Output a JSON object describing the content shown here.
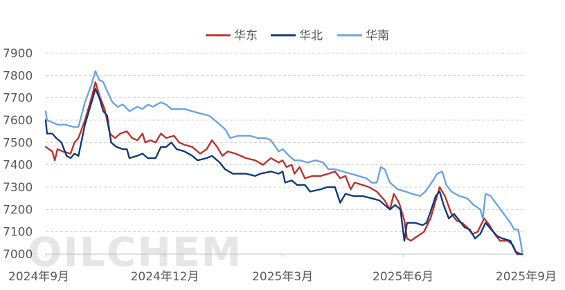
{
  "watermark": "OILCHEM",
  "chart_data": {
    "type": "line",
    "title": "",
    "xlabel": "",
    "ylabel": "",
    "ylim": [
      7000,
      7900
    ],
    "yticks": [
      7000,
      7100,
      7200,
      7300,
      7400,
      7500,
      7600,
      7700,
      7800,
      7900
    ],
    "xlim": [
      "2024-09-01",
      "2025-09-01"
    ],
    "xticks": [
      {
        "date": "2024-09-01",
        "label": "2024年9月"
      },
      {
        "date": "2024-12-01",
        "label": "2024年12月"
      },
      {
        "date": "2025-03-01",
        "label": "2025年3月"
      },
      {
        "date": "2025-06-01",
        "label": "2025年6月"
      },
      {
        "date": "2025-09-01",
        "label": "2025年9月"
      }
    ],
    "grid": true,
    "legend_position": "top-center",
    "series": [
      {
        "name": "华东",
        "color": "#c0302b",
        "points": [
          [
            "2024-09-01",
            7480
          ],
          [
            "2024-09-06",
            7460
          ],
          [
            "2024-09-08",
            7420
          ],
          [
            "2024-09-10",
            7470
          ],
          [
            "2024-09-14",
            7460
          ],
          [
            "2024-09-20",
            7450
          ],
          [
            "2024-09-23",
            7500
          ],
          [
            "2024-09-26",
            7520
          ],
          [
            "2024-10-01",
            7600
          ],
          [
            "2024-10-06",
            7700
          ],
          [
            "2024-10-09",
            7770
          ],
          [
            "2024-10-12",
            7710
          ],
          [
            "2024-10-16",
            7650
          ],
          [
            "2024-10-20",
            7540
          ],
          [
            "2024-10-24",
            7520
          ],
          [
            "2024-10-28",
            7540
          ],
          [
            "2024-11-02",
            7550
          ],
          [
            "2024-11-06",
            7520
          ],
          [
            "2024-11-10",
            7510
          ],
          [
            "2024-11-14",
            7540
          ],
          [
            "2024-11-16",
            7500
          ],
          [
            "2024-11-20",
            7510
          ],
          [
            "2024-11-24",
            7500
          ],
          [
            "2024-11-28",
            7540
          ],
          [
            "2024-12-02",
            7520
          ],
          [
            "2024-12-08",
            7530
          ],
          [
            "2024-12-12",
            7500
          ],
          [
            "2024-12-16",
            7490
          ],
          [
            "2024-12-22",
            7480
          ],
          [
            "2024-12-28",
            7450
          ],
          [
            "2025-01-02",
            7470
          ],
          [
            "2025-01-06",
            7510
          ],
          [
            "2025-01-10",
            7480
          ],
          [
            "2025-01-14",
            7440
          ],
          [
            "2025-01-18",
            7460
          ],
          [
            "2025-01-24",
            7450
          ],
          [
            "2025-02-01",
            7430
          ],
          [
            "2025-02-08",
            7420
          ],
          [
            "2025-02-14",
            7400
          ],
          [
            "2025-02-20",
            7430
          ],
          [
            "2025-02-26",
            7410
          ],
          [
            "2025-03-01",
            7420
          ],
          [
            "2025-03-04",
            7390
          ],
          [
            "2025-03-08",
            7400
          ],
          [
            "2025-03-10",
            7360
          ],
          [
            "2025-03-14",
            7390
          ],
          [
            "2025-03-18",
            7340
          ],
          [
            "2025-03-24",
            7350
          ],
          [
            "2025-03-30",
            7350
          ],
          [
            "2025-04-05",
            7360
          ],
          [
            "2025-04-10",
            7370
          ],
          [
            "2025-04-14",
            7340
          ],
          [
            "2025-04-18",
            7350
          ],
          [
            "2025-04-22",
            7290
          ],
          [
            "2025-04-25",
            7320
          ],
          [
            "2025-05-01",
            7310
          ],
          [
            "2025-05-06",
            7300
          ],
          [
            "2025-05-12",
            7280
          ],
          [
            "2025-05-18",
            7240
          ],
          [
            "2025-05-22",
            7200
          ],
          [
            "2025-05-25",
            7270
          ],
          [
            "2025-05-29",
            7230
          ],
          [
            "2025-06-02",
            7150
          ],
          [
            "2025-06-04",
            7070
          ],
          [
            "2025-06-07",
            7060
          ],
          [
            "2025-06-12",
            7080
          ],
          [
            "2025-06-17",
            7100
          ],
          [
            "2025-06-22",
            7160
          ],
          [
            "2025-06-26",
            7240
          ],
          [
            "2025-06-29",
            7300
          ],
          [
            "2025-07-03",
            7260
          ],
          [
            "2025-07-08",
            7180
          ],
          [
            "2025-07-12",
            7150
          ],
          [
            "2025-07-16",
            7140
          ],
          [
            "2025-07-20",
            7120
          ],
          [
            "2025-07-24",
            7090
          ],
          [
            "2025-07-28",
            7100
          ],
          [
            "2025-08-02",
            7160
          ],
          [
            "2025-08-06",
            7130
          ],
          [
            "2025-08-10",
            7090
          ],
          [
            "2025-08-14",
            7060
          ],
          [
            "2025-08-20",
            7060
          ],
          [
            "2025-08-24",
            7040
          ],
          [
            "2025-08-27",
            7000
          ],
          [
            "2025-08-31",
            7000
          ]
        ]
      },
      {
        "name": "华北",
        "color": "#0f3a7a",
        "points": [
          [
            "2024-09-01",
            7600
          ],
          [
            "2024-09-02",
            7540
          ],
          [
            "2024-09-06",
            7540
          ],
          [
            "2024-09-09",
            7520
          ],
          [
            "2024-09-13",
            7500
          ],
          [
            "2024-09-17",
            7440
          ],
          [
            "2024-09-20",
            7430
          ],
          [
            "2024-09-23",
            7450
          ],
          [
            "2024-09-26",
            7440
          ],
          [
            "2024-10-01",
            7580
          ],
          [
            "2024-10-06",
            7680
          ],
          [
            "2024-10-09",
            7740
          ],
          [
            "2024-10-12",
            7700
          ],
          [
            "2024-10-15",
            7640
          ],
          [
            "2024-10-18",
            7620
          ],
          [
            "2024-10-21",
            7500
          ],
          [
            "2024-10-25",
            7480
          ],
          [
            "2024-10-30",
            7470
          ],
          [
            "2024-11-02",
            7470
          ],
          [
            "2024-11-04",
            7430
          ],
          [
            "2024-11-10",
            7440
          ],
          [
            "2024-11-14",
            7450
          ],
          [
            "2024-11-18",
            7430
          ],
          [
            "2024-11-24",
            7430
          ],
          [
            "2024-11-28",
            7480
          ],
          [
            "2024-12-02",
            7480
          ],
          [
            "2024-12-06",
            7500
          ],
          [
            "2024-12-10",
            7470
          ],
          [
            "2024-12-16",
            7460
          ],
          [
            "2024-12-22",
            7440
          ],
          [
            "2024-12-26",
            7420
          ],
          [
            "2025-01-02",
            7430
          ],
          [
            "2025-01-06",
            7440
          ],
          [
            "2025-01-12",
            7410
          ],
          [
            "2025-01-16",
            7380
          ],
          [
            "2025-01-22",
            7360
          ],
          [
            "2025-02-01",
            7360
          ],
          [
            "2025-02-08",
            7350
          ],
          [
            "2025-02-12",
            7360
          ],
          [
            "2025-02-20",
            7370
          ],
          [
            "2025-02-26",
            7360
          ],
          [
            "2025-03-01",
            7370
          ],
          [
            "2025-03-03",
            7320
          ],
          [
            "2025-03-08",
            7330
          ],
          [
            "2025-03-12",
            7310
          ],
          [
            "2025-03-18",
            7310
          ],
          [
            "2025-03-22",
            7280
          ],
          [
            "2025-03-30",
            7290
          ],
          [
            "2025-04-04",
            7300
          ],
          [
            "2025-04-10",
            7300
          ],
          [
            "2025-04-14",
            7230
          ],
          [
            "2025-04-18",
            7270
          ],
          [
            "2025-04-24",
            7260
          ],
          [
            "2025-05-01",
            7260
          ],
          [
            "2025-05-08",
            7250
          ],
          [
            "2025-05-14",
            7240
          ],
          [
            "2025-05-18",
            7220
          ],
          [
            "2025-05-22",
            7200
          ],
          [
            "2025-05-26",
            7220
          ],
          [
            "2025-05-30",
            7200
          ],
          [
            "2025-06-02",
            7060
          ],
          [
            "2025-06-04",
            7140
          ],
          [
            "2025-06-10",
            7140
          ],
          [
            "2025-06-16",
            7130
          ],
          [
            "2025-06-19",
            7140
          ],
          [
            "2025-06-22",
            7190
          ],
          [
            "2025-06-26",
            7260
          ],
          [
            "2025-06-29",
            7280
          ],
          [
            "2025-07-02",
            7220
          ],
          [
            "2025-07-06",
            7160
          ],
          [
            "2025-07-10",
            7180
          ],
          [
            "2025-07-14",
            7150
          ],
          [
            "2025-07-18",
            7120
          ],
          [
            "2025-07-22",
            7110
          ],
          [
            "2025-07-26",
            7070
          ],
          [
            "2025-07-30",
            7090
          ],
          [
            "2025-08-03",
            7140
          ],
          [
            "2025-08-06",
            7120
          ],
          [
            "2025-08-12",
            7080
          ],
          [
            "2025-08-16",
            7070
          ],
          [
            "2025-08-22",
            7060
          ],
          [
            "2025-08-26",
            7010
          ],
          [
            "2025-08-30",
            7000
          ],
          [
            "2025-08-31",
            7000
          ]
        ]
      },
      {
        "name": "华南",
        "color": "#6aa3e8",
        "points": [
          [
            "2024-09-01",
            7640
          ],
          [
            "2024-09-02",
            7600
          ],
          [
            "2024-09-06",
            7590
          ],
          [
            "2024-09-10",
            7580
          ],
          [
            "2024-09-16",
            7580
          ],
          [
            "2024-09-22",
            7570
          ],
          [
            "2024-09-26",
            7570
          ],
          [
            "2024-10-01",
            7680
          ],
          [
            "2024-10-06",
            7760
          ],
          [
            "2024-10-09",
            7820
          ],
          [
            "2024-10-12",
            7780
          ],
          [
            "2024-10-15",
            7770
          ],
          [
            "2024-10-18",
            7730
          ],
          [
            "2024-10-22",
            7680
          ],
          [
            "2024-10-26",
            7660
          ],
          [
            "2024-10-30",
            7670
          ],
          [
            "2024-11-04",
            7640
          ],
          [
            "2024-11-10",
            7660
          ],
          [
            "2024-11-14",
            7650
          ],
          [
            "2024-11-18",
            7670
          ],
          [
            "2024-11-22",
            7660
          ],
          [
            "2024-11-28",
            7680
          ],
          [
            "2024-12-02",
            7670
          ],
          [
            "2024-12-06",
            7650
          ],
          [
            "2024-12-10",
            7650
          ],
          [
            "2024-12-16",
            7650
          ],
          [
            "2024-12-22",
            7640
          ],
          [
            "2024-12-28",
            7630
          ],
          [
            "2025-01-04",
            7620
          ],
          [
            "2025-01-08",
            7600
          ],
          [
            "2025-01-12",
            7580
          ],
          [
            "2025-01-16",
            7560
          ],
          [
            "2025-01-20",
            7520
          ],
          [
            "2025-01-26",
            7530
          ],
          [
            "2025-02-04",
            7530
          ],
          [
            "2025-02-10",
            7520
          ],
          [
            "2025-02-16",
            7520
          ],
          [
            "2025-02-20",
            7510
          ],
          [
            "2025-02-26",
            7460
          ],
          [
            "2025-03-01",
            7470
          ],
          [
            "2025-03-06",
            7440
          ],
          [
            "2025-03-10",
            7420
          ],
          [
            "2025-03-14",
            7420
          ],
          [
            "2025-03-20",
            7410
          ],
          [
            "2025-03-26",
            7420
          ],
          [
            "2025-04-01",
            7410
          ],
          [
            "2025-04-05",
            7380
          ],
          [
            "2025-04-10",
            7380
          ],
          [
            "2025-04-16",
            7370
          ],
          [
            "2025-04-22",
            7360
          ],
          [
            "2025-04-28",
            7350
          ],
          [
            "2025-05-04",
            7340
          ],
          [
            "2025-05-08",
            7320
          ],
          [
            "2025-05-12",
            7320
          ],
          [
            "2025-05-15",
            7390
          ],
          [
            "2025-05-18",
            7380
          ],
          [
            "2025-05-22",
            7320
          ],
          [
            "2025-05-28",
            7290
          ],
          [
            "2025-06-03",
            7280
          ],
          [
            "2025-06-08",
            7270
          ],
          [
            "2025-06-14",
            7260
          ],
          [
            "2025-06-18",
            7280
          ],
          [
            "2025-06-24",
            7330
          ],
          [
            "2025-06-27",
            7360
          ],
          [
            "2025-07-01",
            7370
          ],
          [
            "2025-07-04",
            7310
          ],
          [
            "2025-07-08",
            7280
          ],
          [
            "2025-07-14",
            7260
          ],
          [
            "2025-07-20",
            7250
          ],
          [
            "2025-07-25",
            7220
          ],
          [
            "2025-07-30",
            7200
          ],
          [
            "2025-08-01",
            7160
          ],
          [
            "2025-08-03",
            7270
          ],
          [
            "2025-08-07",
            7260
          ],
          [
            "2025-08-12",
            7220
          ],
          [
            "2025-08-17",
            7180
          ],
          [
            "2025-08-22",
            7140
          ],
          [
            "2025-08-25",
            7110
          ],
          [
            "2025-08-28",
            7110
          ],
          [
            "2025-08-30",
            7050
          ],
          [
            "2025-08-31",
            7010
          ]
        ]
      }
    ]
  }
}
